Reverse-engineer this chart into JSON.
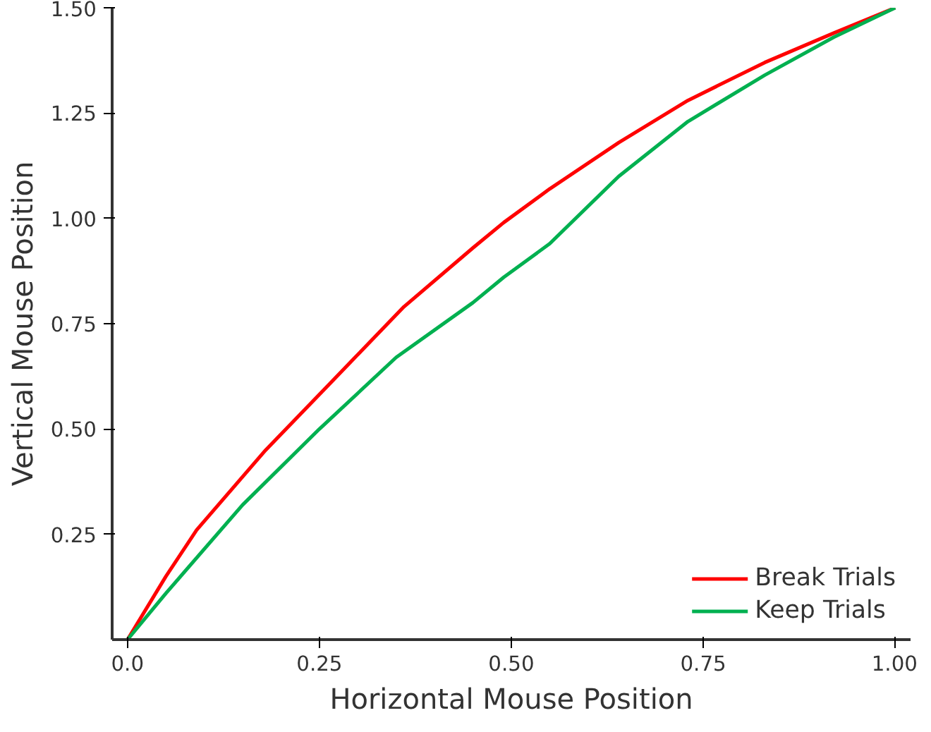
{
  "chart_data": {
    "type": "line",
    "xlabel": "Horizontal Mouse Position",
    "ylabel": "Vertical Mouse Position",
    "xlim": [
      -0.02,
      1.02
    ],
    "ylim": [
      0,
      1.5
    ],
    "xticks": [
      {
        "value": 0,
        "label": "0.0"
      },
      {
        "value": 0.25,
        "label": "0.25"
      },
      {
        "value": 0.5,
        "label": "0.50"
      },
      {
        "value": 0.75,
        "label": "0.75"
      },
      {
        "value": 1,
        "label": "1.00"
      }
    ],
    "yticks": [
      {
        "value": 0.25,
        "label": "0.25"
      },
      {
        "value": 0.5,
        "label": "0.50"
      },
      {
        "value": 0.75,
        "label": "0.75"
      },
      {
        "value": 1,
        "label": "1.00"
      },
      {
        "value": 1.25,
        "label": "1.25"
      },
      {
        "value": 1.5,
        "label": "1.50"
      }
    ],
    "grid": false,
    "legend": "bottom right",
    "line_style": "solid",
    "series": [
      {
        "name": "Break Trials",
        "color": "#ff0000",
        "x": [
          0,
          0.05,
          0.09,
          0.18,
          0.27,
          0.36,
          0.45,
          0.49,
          0.55,
          0.64,
          0.73,
          0.83,
          0.92,
          1.0
        ],
        "values": [
          0,
          0.15,
          0.26,
          0.45,
          0.62,
          0.79,
          0.93,
          0.99,
          1.07,
          1.18,
          1.28,
          1.37,
          1.44,
          1.5
        ]
      },
      {
        "name": "Keep Trials",
        "color": "#00b050",
        "x": [
          0,
          0.05,
          0.15,
          0.25,
          0.35,
          0.45,
          0.49,
          0.55,
          0.64,
          0.73,
          0.83,
          0.92,
          1.0
        ],
        "values": [
          0,
          0.11,
          0.32,
          0.5,
          0.67,
          0.8,
          0.86,
          0.94,
          1.1,
          1.23,
          1.34,
          1.43,
          1.5
        ]
      }
    ]
  }
}
